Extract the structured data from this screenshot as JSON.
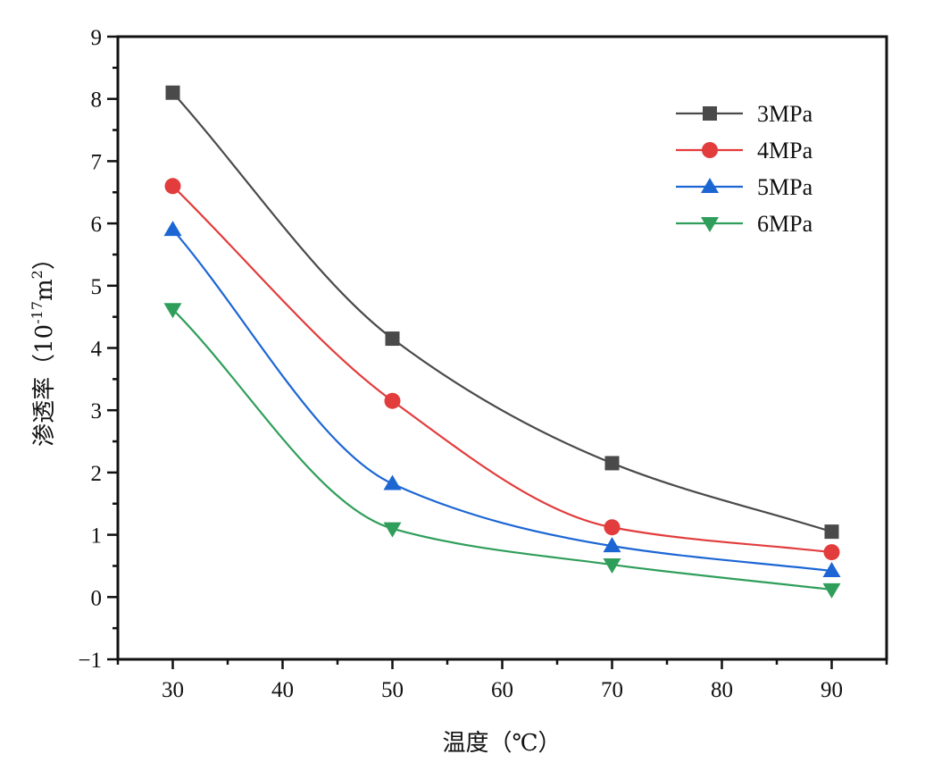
{
  "chart_data": {
    "type": "line",
    "title": "",
    "xlabel": "温度（℃）",
    "ylabel": "渗透率（10⁻¹⁷m²）",
    "ylabel_parts": {
      "main": "渗透率（10",
      "sup1": "-17",
      "unit": "m",
      "sup2": "2",
      "close": "）"
    },
    "x": [
      30,
      50,
      70,
      90
    ],
    "xlim": [
      25,
      95
    ],
    "ylim": [
      -1,
      9
    ],
    "xticks": [
      30,
      40,
      50,
      60,
      70,
      80,
      90
    ],
    "xtick_labels": [
      "30",
      "40",
      "50",
      "60",
      "70",
      "80",
      "90"
    ],
    "yticks": [
      -1,
      0,
      1,
      2,
      3,
      4,
      5,
      6,
      7,
      8,
      9
    ],
    "ytick_labels": [
      "−1",
      "0",
      "1",
      "2",
      "3",
      "4",
      "5",
      "6",
      "7",
      "8",
      "9"
    ],
    "grid": false,
    "legend_position": "top-right",
    "smooth": true,
    "series": [
      {
        "name": "3MPa",
        "color": "#4a4a4a",
        "marker": "square",
        "values": [
          8.1,
          4.15,
          2.15,
          1.05
        ]
      },
      {
        "name": "4MPa",
        "color": "#e23c3c",
        "marker": "circle",
        "values": [
          6.6,
          3.15,
          1.12,
          0.72
        ]
      },
      {
        "name": "5MPa",
        "color": "#1c66d4",
        "marker": "triangle-up",
        "values": [
          5.9,
          1.82,
          0.82,
          0.42
        ]
      },
      {
        "name": "6MPa",
        "color": "#2f9e5a",
        "marker": "triangle-down",
        "values": [
          4.62,
          1.1,
          0.52,
          0.12
        ]
      }
    ]
  }
}
